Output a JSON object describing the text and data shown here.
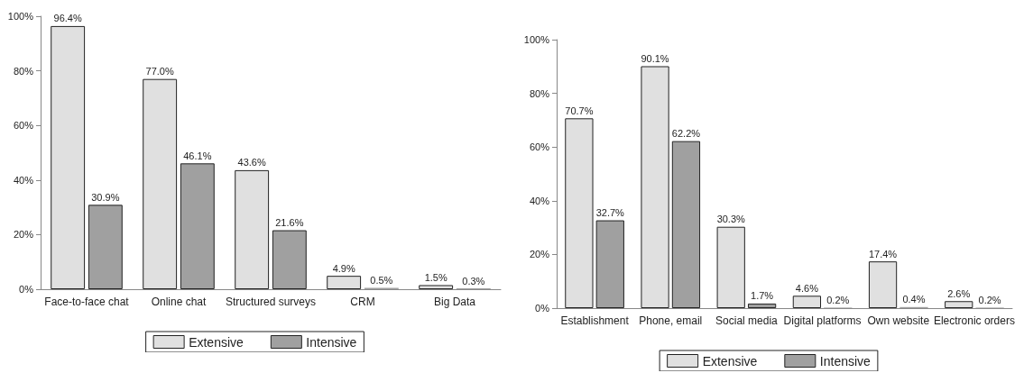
{
  "chart_data": [
    {
      "type": "bar",
      "categories": [
        "Face-to-face chat",
        "Online chat",
        "Structured surveys",
        "CRM",
        "Big Data"
      ],
      "series": [
        {
          "name": "Extensive",
          "color": "#e0e0e0",
          "values": [
            96.4,
            77.0,
            43.6,
            4.9,
            1.5
          ],
          "value_labels": [
            "96.4%",
            "77.0%",
            "43.6%",
            "4.9%",
            "1.5%"
          ]
        },
        {
          "name": "Intensive",
          "color": "#a0a0a0",
          "values": [
            30.9,
            46.1,
            21.6,
            0.5,
            0.3
          ],
          "value_labels": [
            "30.9%",
            "46.1%",
            "21.6%",
            "0.5%",
            "0.3%"
          ]
        }
      ],
      "ylim": [
        0,
        100
      ],
      "yticks": [
        {
          "value": 0,
          "label": "0%"
        },
        {
          "value": 20,
          "label": "20%"
        },
        {
          "value": 40,
          "label": "40%"
        },
        {
          "value": 60,
          "label": "60%"
        },
        {
          "value": 80,
          "label": "80%"
        },
        {
          "value": 100,
          "label": "100%"
        }
      ],
      "grid": false,
      "legend": "bottom"
    },
    {
      "type": "bar",
      "categories": [
        "Establishment",
        "Phone, email",
        "Social media",
        "Digital platforms",
        "Own website",
        "Electronic orders"
      ],
      "series": [
        {
          "name": "Extensive",
          "color": "#e0e0e0",
          "values": [
            70.7,
            90.1,
            30.3,
            4.6,
            17.4,
            2.6
          ],
          "value_labels": [
            "70.7%",
            "90.1%",
            "30.3%",
            "4.6%",
            "17.4%",
            "2.6%"
          ]
        },
        {
          "name": "Intensive",
          "color": "#a0a0a0",
          "values": [
            32.7,
            62.2,
            1.7,
            0.2,
            0.4,
            0.2
          ],
          "value_labels": [
            "32.7%",
            "62.2%",
            "1.7%",
            "0.2%",
            "0.4%",
            "0.2%"
          ]
        }
      ],
      "ylim": [
        0,
        100
      ],
      "yticks": [
        {
          "value": 0,
          "label": "0%"
        },
        {
          "value": 20,
          "label": "20%"
        },
        {
          "value": 40,
          "label": "40%"
        },
        {
          "value": 60,
          "label": "60%"
        },
        {
          "value": 80,
          "label": "80%"
        },
        {
          "value": 100,
          "label": "100%"
        }
      ],
      "grid": false,
      "legend": "bottom"
    }
  ]
}
